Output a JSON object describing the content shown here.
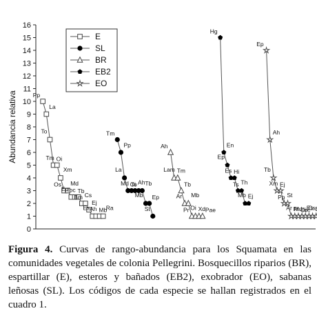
{
  "chart_data": {
    "type": "line",
    "ylabel": "Abundancia relativa",
    "xlabel": "",
    "ylim": [
      0,
      16
    ],
    "yticks": [
      0,
      1,
      2,
      3,
      4,
      5,
      6,
      7,
      8,
      9,
      10,
      11,
      12,
      13,
      14,
      15,
      16
    ],
    "legend_position": "top-left",
    "series": [
      {
        "name": "E",
        "marker": "square-open",
        "start": 1,
        "species": [
          "Pp",
          "La",
          "To",
          "Oi",
          "Tm",
          "Xm",
          "Os",
          "Md",
          "Ep",
          "Tb",
          "Toc",
          "Cs",
          "Bm",
          "Ej",
          "Es",
          "Mb",
          "Ah",
          "Ra"
        ],
        "values": [
          10,
          9,
          7,
          5,
          5,
          4,
          3,
          3,
          2.5,
          2.5,
          2.5,
          2,
          2,
          1.5,
          1,
          1,
          1,
          1
        ]
      },
      {
        "name": "SL",
        "marker": "circle-filled",
        "start": 22,
        "species": [
          "Tm",
          "Pp",
          "La",
          "To",
          "Md",
          "Ah",
          "Oi",
          "Tb",
          "Mb",
          "Ep",
          "St"
        ],
        "values": [
          7,
          6,
          4,
          3,
          3,
          3,
          3,
          3,
          2,
          2,
          1
        ]
      },
      {
        "name": "BR",
        "marker": "triangle-open",
        "start": 37,
        "species": [
          "Ah",
          "Tm",
          "Lam",
          "Tb",
          "Ar",
          "Mb",
          "Pr",
          "Xd",
          "Oi",
          "Pae"
        ],
        "values": [
          6,
          4,
          4,
          3,
          2,
          2,
          1,
          1,
          1,
          1
        ]
      },
      {
        "name": "EB2",
        "marker": "pentagon-filled",
        "start": 51,
        "species": [
          "Hg",
          "En",
          "Ep",
          "Hi",
          "Es",
          "Th",
          "Ts",
          "Ej",
          "Mb"
        ],
        "values": [
          15,
          6,
          5,
          4,
          4,
          3,
          3,
          2,
          2
        ]
      },
      {
        "name": "EO",
        "marker": "star-open",
        "start": 64,
        "species": [
          "Ep",
          "Ah",
          "Tb",
          "Ej",
          "Xm",
          "St",
          "Pp",
          "Md",
          "Ar",
          "Toc",
          "Pr",
          "Cs",
          "Oi",
          "Bm",
          "Es",
          "Mb"
        ],
        "values": [
          14,
          7,
          4,
          3,
          3,
          2,
          2,
          1,
          1,
          1,
          1,
          1,
          1,
          1,
          1,
          1
        ]
      }
    ]
  },
  "caption": {
    "label": "Figura 4.",
    "text": " Curvas de rango-abundancia para los Squamata en las comunidades vegetales de colonia Pellegrini. Bosquecillos riparios (BR), espartillar (E), esteros y bañados (EB2), exobrador (EO), sabanas leñosas (SL). Los códigos de cada especie se hallan registrados en el cuadro 1."
  }
}
